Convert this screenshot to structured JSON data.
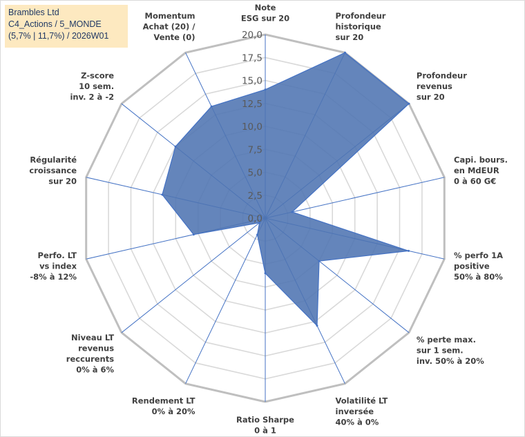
{
  "header": {
    "line1": "Brambles Ltd",
    "line2": "C4_Actions / 5_MONDE",
    "line3": "(5,7% | 11,7%) / 2026W01"
  },
  "colors": {
    "fill": "#4f74b2",
    "stroke": "#4472c4",
    "grid": "#d9d9d9",
    "title_bg": "#fde9c0"
  },
  "chart_data": {
    "type": "radar",
    "rlim": [
      0,
      20
    ],
    "ticks": [
      "0,0",
      "2,5",
      "5,0",
      "7,5",
      "10,0",
      "12,5",
      "15,0",
      "17,5",
      "20,0"
    ],
    "axes": [
      {
        "label": [
          "Note",
          "ESG sur 20"
        ],
        "value": 14.0
      },
      {
        "label": [
          "Profondeur",
          "historique",
          "sur 20"
        ],
        "value": 20.0
      },
      {
        "label": [
          "Profondeur",
          "revenus",
          "sur 20"
        ],
        "value": 20.0
      },
      {
        "label": [
          "Capi. bours.",
          "en MdEUR",
          "0 à 60 G€"
        ],
        "value": 3.0
      },
      {
        "label": [
          "% perfo 1A",
          "positive",
          "50% à 80%"
        ],
        "value": 16.0
      },
      {
        "label": [
          "% perte max.",
          "sur 1 sem.",
          "inv. 50% à 20%"
        ],
        "value": 7.5
      },
      {
        "label": [
          "Volatilité LT",
          "inversée",
          "40% à 0%"
        ],
        "value": 13.0
      },
      {
        "label": [
          "Ratio Sharpe",
          "0 à 1"
        ],
        "value": 6.0
      },
      {
        "label": [
          "Rendement LT",
          "0% à 20%"
        ],
        "value": 2.0
      },
      {
        "label": [
          "Niveau LT",
          "revenus",
          "reccurents",
          "0% à 6%"
        ],
        "value": 0.8
      },
      {
        "label": [
          "Perfo. LT",
          "vs index",
          "-8% à 12%"
        ],
        "value": 8.0
      },
      {
        "label": [
          "Régularité",
          "croissance",
          "sur 20"
        ],
        "value": 11.5
      },
      {
        "label": [
          "Z-score",
          "10 sem.",
          "inv. 2 à -2"
        ],
        "value": 12.5
      },
      {
        "label": [
          "Momentum",
          "Achat (20) /",
          "Vente (0)"
        ],
        "value": 13.5
      }
    ]
  }
}
